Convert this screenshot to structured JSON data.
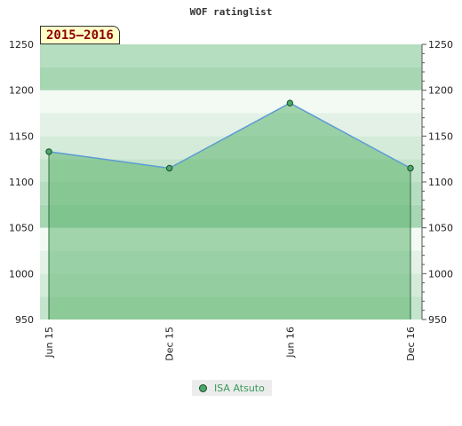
{
  "chart_data": {
    "type": "area",
    "title": "WOF ratinglist",
    "season_label": "2015–2016",
    "categories": [
      "Jun 15",
      "Dec 15",
      "Jun 16",
      "Dec 16"
    ],
    "series": [
      {
        "name": "ISA Atsuto",
        "values": [
          1133,
          1115,
          1186,
          1115
        ],
        "color": "#4aa86a"
      }
    ],
    "ylim": [
      950,
      1250
    ],
    "yticks": [
      950,
      1000,
      1050,
      1100,
      1150,
      1200,
      1250
    ],
    "band_step": 25,
    "grid": false,
    "legend_position": "bottom-center",
    "colors": {
      "line": "#5b9bd5",
      "fill": "#5fb56f",
      "marker": "#4aa86a"
    }
  }
}
